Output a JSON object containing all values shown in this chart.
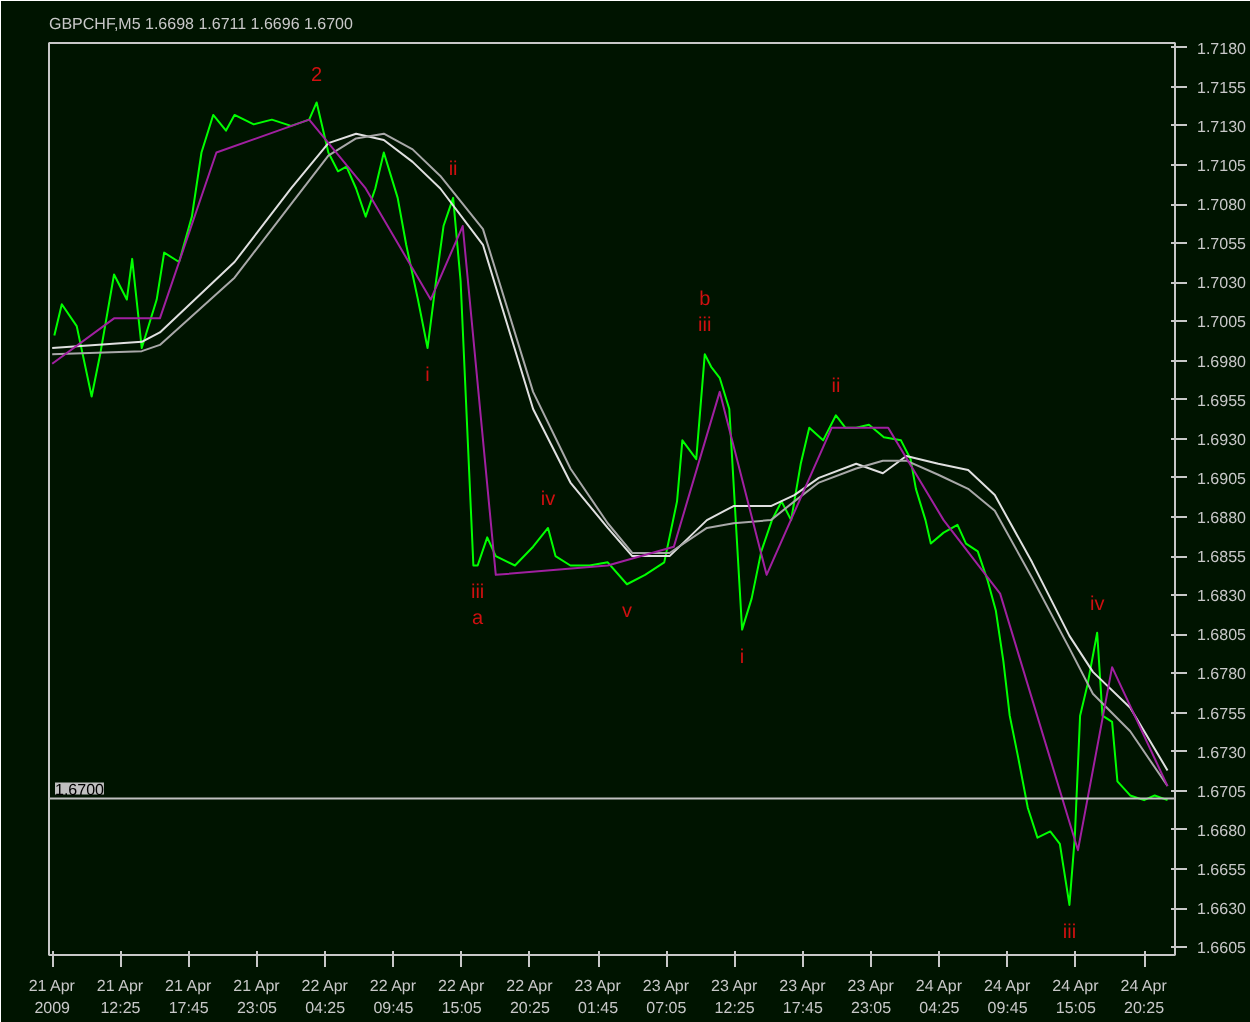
{
  "chart_data": {
    "type": "line",
    "title": "GBPCHF,M5  1.6698 1.6711 1.6696 1.6700",
    "xlim": [
      "2009-04-21T06:50",
      "2009-04-24T22:50"
    ],
    "xticks": [
      {
        "value": "2009-04-21T07:05",
        "label": "21 Apr 2009"
      },
      {
        "value": "2009-04-21T12:25",
        "label": "21 Apr 12:25"
      },
      {
        "value": "2009-04-21T17:45",
        "label": "21 Apr 17:45"
      },
      {
        "value": "2009-04-21T23:05",
        "label": "21 Apr 23:05"
      },
      {
        "value": "2009-04-22T04:25",
        "label": "22 Apr 04:25"
      },
      {
        "value": "2009-04-22T09:45",
        "label": "22 Apr 09:45"
      },
      {
        "value": "2009-04-22T15:05",
        "label": "22 Apr 15:05"
      },
      {
        "value": "2009-04-22T20:25",
        "label": "22 Apr 20:25"
      },
      {
        "value": "2009-04-23T01:45",
        "label": "23 Apr 01:45"
      },
      {
        "value": "2009-04-23T07:05",
        "label": "23 Apr 07:05"
      },
      {
        "value": "2009-04-23T12:25",
        "label": "23 Apr 12:25"
      },
      {
        "value": "2009-04-23T17:45",
        "label": "23 Apr 17:45"
      },
      {
        "value": "2009-04-23T23:05",
        "label": "23 Apr 23:05"
      },
      {
        "value": "2009-04-24T04:25",
        "label": "24 Apr 04:25"
      },
      {
        "value": "2009-04-24T09:45",
        "label": "24 Apr 09:45"
      },
      {
        "value": "2009-04-24T15:05",
        "label": "24 Apr 15:05"
      },
      {
        "value": "2009-04-24T20:25",
        "label": "24 Apr 20:25"
      }
    ],
    "ylim": [
      1.66,
      1.7183
    ],
    "yticks": [
      {
        "value": 1.718,
        "label": "1.7180"
      },
      {
        "value": 1.7155,
        "label": "1.7155"
      },
      {
        "value": 1.713,
        "label": "1.7130"
      },
      {
        "value": 1.7105,
        "label": "1.7105"
      },
      {
        "value": 1.708,
        "label": "1.7080"
      },
      {
        "value": 1.7055,
        "label": "1.7055"
      },
      {
        "value": 1.703,
        "label": "1.7030"
      },
      {
        "value": 1.7005,
        "label": "1.7005"
      },
      {
        "value": 1.698,
        "label": "1.6980"
      },
      {
        "value": 1.6955,
        "label": "1.6955"
      },
      {
        "value": 1.693,
        "label": "1.6930"
      },
      {
        "value": 1.6905,
        "label": "1.6905"
      },
      {
        "value": 1.688,
        "label": "1.6880"
      },
      {
        "value": 1.6855,
        "label": "1.6855"
      },
      {
        "value": 1.683,
        "label": "1.6830"
      },
      {
        "value": 1.6805,
        "label": "1.6805"
      },
      {
        "value": 1.678,
        "label": "1.6780"
      },
      {
        "value": 1.6755,
        "label": "1.6755"
      },
      {
        "value": 1.673,
        "label": "1.6730"
      },
      {
        "value": 1.6705,
        "label": "1.6705"
      },
      {
        "value": 1.668,
        "label": "1.6680"
      },
      {
        "value": 1.6655,
        "label": "1.6655"
      },
      {
        "value": 1.663,
        "label": "1.6630"
      },
      {
        "value": 1.6605,
        "label": "1.6605"
      }
    ],
    "ref_lines": [
      {
        "axis": "y",
        "value": 1.67,
        "label": "1.6700",
        "color": "#c0c0c0"
      }
    ],
    "series": [
      {
        "color": "#00ff00",
        "x": [
          "2009-04-21T07:15",
          "2009-04-21T07:50",
          "2009-04-21T09:00",
          "2009-04-21T10:10",
          "2009-04-21T10:50",
          "2009-04-21T11:55",
          "2009-04-21T12:55",
          "2009-04-21T13:20",
          "2009-04-21T14:05",
          "2009-04-21T15:15",
          "2009-04-21T15:50",
          "2009-04-21T17:00",
          "2009-04-21T18:00",
          "2009-04-21T18:45",
          "2009-04-21T19:40",
          "2009-04-21T20:40",
          "2009-04-21T21:20",
          "2009-04-21T22:50",
          "2009-04-22T00:15",
          "2009-04-22T01:45",
          "2009-04-22T03:10",
          "2009-04-22T03:45",
          "2009-04-22T04:40",
          "2009-04-22T05:25",
          "2009-04-22T06:05",
          "2009-04-22T06:50",
          "2009-04-22T07:35",
          "2009-04-22T08:20",
          "2009-04-22T09:00",
          "2009-04-22T10:05",
          "2009-04-22T10:45",
          "2009-04-22T11:40",
          "2009-04-22T12:25",
          "2009-04-22T13:05",
          "2009-04-22T13:40",
          "2009-04-22T14:25",
          "2009-04-22T15:00",
          "2009-04-22T16:00",
          "2009-04-22T16:20",
          "2009-04-22T17:05",
          "2009-04-22T17:45",
          "2009-04-22T19:15",
          "2009-04-22T20:40",
          "2009-04-22T21:50",
          "2009-04-22T22:25",
          "2009-04-22T23:35",
          "2009-04-23T01:05",
          "2009-04-23T02:30",
          "2009-04-23T04:00",
          "2009-04-23T05:25",
          "2009-04-23T06:55",
          "2009-04-23T07:55",
          "2009-04-23T08:20",
          "2009-04-23T09:25",
          "2009-04-23T10:05",
          "2009-04-23T10:35",
          "2009-04-23T11:15",
          "2009-04-23T12:00",
          "2009-04-23T12:25",
          "2009-04-23T13:00",
          "2009-04-23T13:45",
          "2009-04-23T14:30",
          "2009-04-23T15:20",
          "2009-04-23T16:05",
          "2009-04-23T16:50",
          "2009-04-23T17:35",
          "2009-04-23T18:15",
          "2009-04-23T19:20",
          "2009-04-23T20:20",
          "2009-04-23T21:05",
          "2009-04-23T21:55",
          "2009-04-23T22:55",
          "2009-04-24T00:05",
          "2009-04-24T01:25",
          "2009-04-24T02:10",
          "2009-04-24T02:35",
          "2009-04-24T03:20",
          "2009-04-24T03:45",
          "2009-04-24T04:45",
          "2009-04-24T05:50",
          "2009-04-24T06:30",
          "2009-04-24T07:25",
          "2009-04-24T08:10",
          "2009-04-24T08:50",
          "2009-04-24T09:25",
          "2009-04-24T09:55",
          "2009-04-24T10:35",
          "2009-04-24T11:20",
          "2009-04-24T12:05",
          "2009-04-24T13:05",
          "2009-04-24T13:50",
          "2009-04-24T14:35",
          "2009-04-24T15:00",
          "2009-04-24T15:25",
          "2009-04-24T16:00",
          "2009-04-24T16:45",
          "2009-04-24T17:10",
          "2009-04-24T17:55",
          "2009-04-24T18:20",
          "2009-04-24T19:20",
          "2009-04-24T20:25",
          "2009-04-24T21:15",
          "2009-04-24T22:15"
        ],
        "values": [
          1.6996,
          1.7016,
          1.7002,
          1.6957,
          1.6984,
          1.7035,
          1.7019,
          1.7045,
          1.6988,
          1.7019,
          1.7049,
          1.7043,
          1.7072,
          1.7113,
          1.7137,
          1.7127,
          1.7137,
          1.7131,
          1.7134,
          1.713,
          1.7134,
          1.7145,
          1.7113,
          1.7101,
          1.7104,
          1.709,
          1.7072,
          1.709,
          1.7113,
          1.7084,
          1.7054,
          1.7019,
          1.6988,
          1.7031,
          1.7066,
          1.7084,
          1.7031,
          1.6849,
          1.6849,
          1.6867,
          1.6855,
          1.6849,
          1.6861,
          1.6873,
          1.6855,
          1.6849,
          1.6849,
          1.6851,
          1.6837,
          1.6843,
          1.6851,
          1.689,
          1.6929,
          1.6917,
          1.6984,
          1.6976,
          1.6969,
          1.6949,
          1.689,
          1.6808,
          1.6828,
          1.6858,
          1.6878,
          1.689,
          1.6878,
          1.6914,
          1.6937,
          1.6929,
          1.6945,
          1.6937,
          1.6937,
          1.6939,
          1.6931,
          1.6929,
          1.6917,
          1.6898,
          1.6878,
          1.6863,
          1.687,
          1.6875,
          1.6863,
          1.6858,
          1.684,
          1.682,
          1.6788,
          1.6753,
          1.6726,
          1.6694,
          1.6675,
          1.6679,
          1.6671,
          1.6632,
          1.6675,
          1.6753,
          1.6773,
          1.6806,
          1.6753,
          1.6749,
          1.6711,
          1.6702,
          1.6699,
          1.6702,
          1.6699
        ]
      },
      {
        "color": "#e0e0e0",
        "x": [
          "2009-04-21T07:05",
          "2009-04-21T14:05",
          "2009-04-21T15:30",
          "2009-04-21T21:20",
          "2009-04-22T01:45",
          "2009-04-22T04:40",
          "2009-04-22T06:50",
          "2009-04-22T09:00",
          "2009-04-22T11:15",
          "2009-04-22T13:25",
          "2009-04-22T16:45",
          "2009-04-22T20:40",
          "2009-04-22T23:35",
          "2009-04-23T02:30",
          "2009-04-23T04:25",
          "2009-04-23T07:20",
          "2009-04-23T10:15",
          "2009-04-23T12:20",
          "2009-04-23T15:15",
          "2009-04-23T17:05",
          "2009-04-23T19:00",
          "2009-04-23T21:55",
          "2009-04-24T00:00",
          "2009-04-24T01:50",
          "2009-04-24T04:20",
          "2009-04-24T06:40",
          "2009-04-24T08:45",
          "2009-04-24T11:40",
          "2009-04-24T14:35",
          "2009-04-24T16:25",
          "2009-04-24T19:20",
          "2009-04-24T22:15"
        ],
        "values": [
          1.6988,
          1.6992,
          1.6998,
          1.7043,
          1.709,
          1.7119,
          1.7125,
          1.7121,
          1.7107,
          1.709,
          1.7054,
          1.6949,
          1.6902,
          1.6873,
          1.6855,
          1.6855,
          1.6878,
          1.6887,
          1.6887,
          1.6894,
          1.6905,
          1.6914,
          1.6908,
          1.6919,
          1.6914,
          1.691,
          1.6894,
          1.6851,
          1.6804,
          1.6781,
          1.6758,
          1.6718
        ]
      },
      {
        "color": "#a8a8a8",
        "x": [
          "2009-04-21T07:05",
          "2009-04-21T14:05",
          "2009-04-21T15:30",
          "2009-04-21T21:20",
          "2009-04-22T01:45",
          "2009-04-22T04:40",
          "2009-04-22T06:50",
          "2009-04-22T09:00",
          "2009-04-22T11:15",
          "2009-04-22T13:25",
          "2009-04-22T16:45",
          "2009-04-22T20:40",
          "2009-04-22T23:35",
          "2009-04-23T02:30",
          "2009-04-23T04:25",
          "2009-04-23T07:20",
          "2009-04-23T10:15",
          "2009-04-23T12:20",
          "2009-04-23T15:15",
          "2009-04-23T17:05",
          "2009-04-23T19:00",
          "2009-04-23T21:55",
          "2009-04-24T00:00",
          "2009-04-24T01:50",
          "2009-04-24T04:20",
          "2009-04-24T06:40",
          "2009-04-24T08:45",
          "2009-04-24T11:40",
          "2009-04-24T14:35",
          "2009-04-24T16:25",
          "2009-04-24T19:20",
          "2009-04-24T22:15"
        ],
        "values": [
          1.6984,
          1.6986,
          1.699,
          1.7033,
          1.708,
          1.7111,
          1.7122,
          1.7125,
          1.7115,
          1.7098,
          1.7064,
          1.696,
          1.6911,
          1.6876,
          1.6857,
          1.6857,
          1.6873,
          1.6876,
          1.6878,
          1.689,
          1.6902,
          1.6911,
          1.6916,
          1.6916,
          1.6907,
          1.6898,
          1.6884,
          1.6841,
          1.6796,
          1.6767,
          1.6743,
          1.6708
        ]
      },
      {
        "color": "#a020a0",
        "x": [
          "2009-04-21T07:05",
          "2009-04-21T11:55",
          "2009-04-21T15:30",
          "2009-04-21T19:55",
          "2009-04-22T03:10",
          "2009-04-22T07:35",
          "2009-04-22T12:40",
          "2009-04-22T15:10",
          "2009-04-22T17:45",
          "2009-04-23T02:30",
          "2009-04-23T07:40",
          "2009-04-23T11:15",
          "2009-04-23T14:55",
          "2009-04-23T20:00",
          "2009-04-24T00:25",
          "2009-04-24T04:45",
          "2009-04-24T09:10",
          "2009-04-24T15:15",
          "2009-04-24T17:55",
          "2009-04-24T22:15"
        ],
        "values": [
          1.6978,
          1.7007,
          1.7007,
          1.7113,
          1.7134,
          1.709,
          1.7019,
          1.7066,
          1.6843,
          1.6849,
          1.6861,
          1.696,
          1.6843,
          1.6937,
          1.6937,
          1.6878,
          1.6831,
          1.6667,
          1.6784,
          1.6708
        ]
      }
    ],
    "annotations": [
      {
        "text": "2",
        "x": "2009-04-22T03:45",
        "y": 1.7145
      },
      {
        "text": "ii",
        "x": "2009-04-22T14:25",
        "y": 1.7084
      },
      {
        "text": "i",
        "x": "2009-04-22T12:25",
        "y": 1.6988
      },
      {
        "text": "iii",
        "x": "2009-04-22T16:20",
        "y": 1.6849
      },
      {
        "text": "a",
        "x": "2009-04-22T16:20",
        "y": 1.6849
      },
      {
        "text": "iv",
        "x": "2009-04-22T21:50",
        "y": 1.6873
      },
      {
        "text": "v",
        "x": "2009-04-23T04:00",
        "y": 1.6837
      },
      {
        "text": "b",
        "x": "2009-04-23T10:05",
        "y": 1.6984
      },
      {
        "text": "iii",
        "x": "2009-04-23T10:05",
        "y": 1.6984
      },
      {
        "text": "i",
        "x": "2009-04-23T13:00",
        "y": 1.6808
      },
      {
        "text": "ii",
        "x": "2009-04-23T20:20",
        "y": 1.6945
      },
      {
        "text": "iv",
        "x": "2009-04-24T16:45",
        "y": 1.6806
      },
      {
        "text": "iii",
        "x": "2009-04-24T14:35",
        "y": 1.6632
      }
    ]
  }
}
